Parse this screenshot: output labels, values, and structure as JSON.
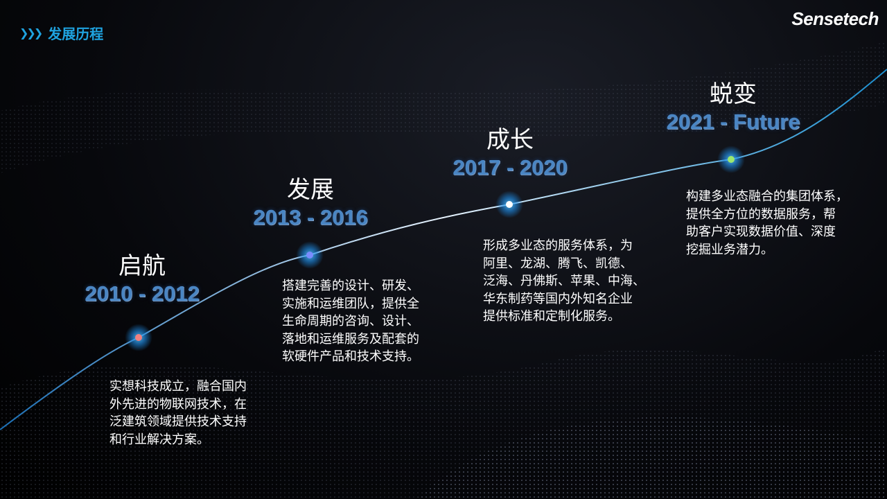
{
  "header": {
    "title": "发展历程",
    "chevron_icon": "triple-chevron-right-icon"
  },
  "logo": "Sensetech",
  "colors": {
    "accent": "#1fa3e0",
    "years": "#4a86c4"
  },
  "stages": [
    {
      "name": "启航",
      "years": "2010 - 2012",
      "dot_color": "#f08080",
      "desc": [
        "实想科技成立，融合国内",
        "外先进的物联网技术，在",
        "泛建筑领域提供技术支持",
        "和行业解决方案。"
      ]
    },
    {
      "name": "发展",
      "years": "2013 - 2016",
      "dot_color": "#7a8cff",
      "desc": [
        "搭建完善的设计、研发、",
        "实施和运维团队，提供全",
        "生命周期的咨询、设计、",
        "落地和运维服务及配套的",
        "软硬件产品和技术支持。"
      ]
    },
    {
      "name": "成长",
      "years": "2017 - 2020",
      "dot_color": "#ffffff",
      "desc": [
        "形成多业态的服务体系，为",
        "阿里、龙湖、腾飞、凯德、",
        "泛海、丹佛斯、苹果、中海、",
        "华东制药等国内外知名企业",
        "提供标准和定制化服务。"
      ]
    },
    {
      "name": "蜕变",
      "years": "2021 - Future",
      "dot_color": "#9be870",
      "desc": [
        "构建多业态融合的集团体系，",
        "提供全方位的数据服务，帮",
        "助客户实现数据价值、深度",
        "挖掘业务潜力。"
      ]
    }
  ]
}
